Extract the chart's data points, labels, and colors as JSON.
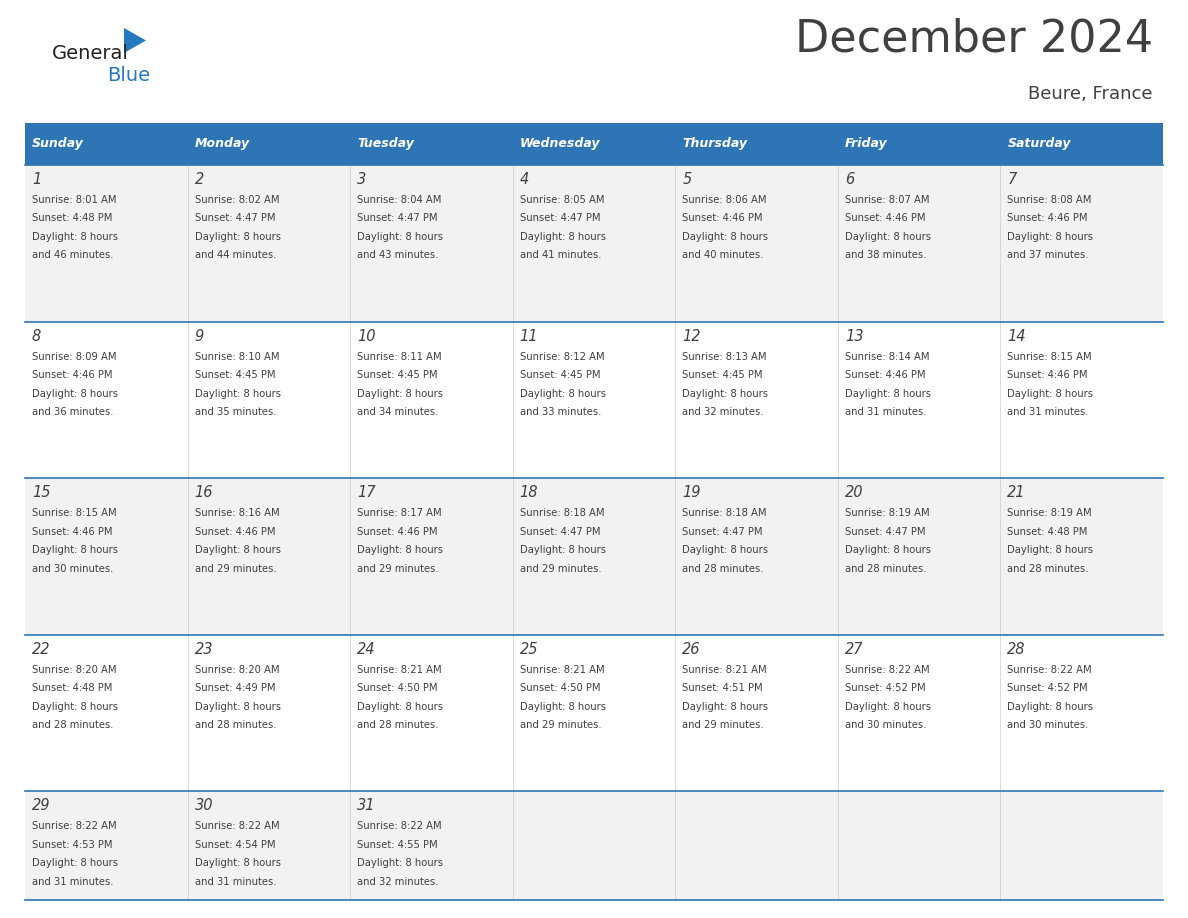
{
  "title": "December 2024",
  "subtitle": "Beure, France",
  "header_color": "#2E75B6",
  "header_text_color": "#FFFFFF",
  "days_of_week": [
    "Sunday",
    "Monday",
    "Tuesday",
    "Wednesday",
    "Thursday",
    "Friday",
    "Saturday"
  ],
  "weeks": [
    [
      {
        "day": 1,
        "sunrise": "8:01 AM",
        "sunset": "4:48 PM",
        "daylight_hours": 8,
        "daylight_minutes": 46
      },
      {
        "day": 2,
        "sunrise": "8:02 AM",
        "sunset": "4:47 PM",
        "daylight_hours": 8,
        "daylight_minutes": 44
      },
      {
        "day": 3,
        "sunrise": "8:04 AM",
        "sunset": "4:47 PM",
        "daylight_hours": 8,
        "daylight_minutes": 43
      },
      {
        "day": 4,
        "sunrise": "8:05 AM",
        "sunset": "4:47 PM",
        "daylight_hours": 8,
        "daylight_minutes": 41
      },
      {
        "day": 5,
        "sunrise": "8:06 AM",
        "sunset": "4:46 PM",
        "daylight_hours": 8,
        "daylight_minutes": 40
      },
      {
        "day": 6,
        "sunrise": "8:07 AM",
        "sunset": "4:46 PM",
        "daylight_hours": 8,
        "daylight_minutes": 38
      },
      {
        "day": 7,
        "sunrise": "8:08 AM",
        "sunset": "4:46 PM",
        "daylight_hours": 8,
        "daylight_minutes": 37
      }
    ],
    [
      {
        "day": 8,
        "sunrise": "8:09 AM",
        "sunset": "4:46 PM",
        "daylight_hours": 8,
        "daylight_minutes": 36
      },
      {
        "day": 9,
        "sunrise": "8:10 AM",
        "sunset": "4:45 PM",
        "daylight_hours": 8,
        "daylight_minutes": 35
      },
      {
        "day": 10,
        "sunrise": "8:11 AM",
        "sunset": "4:45 PM",
        "daylight_hours": 8,
        "daylight_minutes": 34
      },
      {
        "day": 11,
        "sunrise": "8:12 AM",
        "sunset": "4:45 PM",
        "daylight_hours": 8,
        "daylight_minutes": 33
      },
      {
        "day": 12,
        "sunrise": "8:13 AM",
        "sunset": "4:45 PM",
        "daylight_hours": 8,
        "daylight_minutes": 32
      },
      {
        "day": 13,
        "sunrise": "8:14 AM",
        "sunset": "4:46 PM",
        "daylight_hours": 8,
        "daylight_minutes": 31
      },
      {
        "day": 14,
        "sunrise": "8:15 AM",
        "sunset": "4:46 PM",
        "daylight_hours": 8,
        "daylight_minutes": 31
      }
    ],
    [
      {
        "day": 15,
        "sunrise": "8:15 AM",
        "sunset": "4:46 PM",
        "daylight_hours": 8,
        "daylight_minutes": 30
      },
      {
        "day": 16,
        "sunrise": "8:16 AM",
        "sunset": "4:46 PM",
        "daylight_hours": 8,
        "daylight_minutes": 29
      },
      {
        "day": 17,
        "sunrise": "8:17 AM",
        "sunset": "4:46 PM",
        "daylight_hours": 8,
        "daylight_minutes": 29
      },
      {
        "day": 18,
        "sunrise": "8:18 AM",
        "sunset": "4:47 PM",
        "daylight_hours": 8,
        "daylight_minutes": 29
      },
      {
        "day": 19,
        "sunrise": "8:18 AM",
        "sunset": "4:47 PM",
        "daylight_hours": 8,
        "daylight_minutes": 28
      },
      {
        "day": 20,
        "sunrise": "8:19 AM",
        "sunset": "4:47 PM",
        "daylight_hours": 8,
        "daylight_minutes": 28
      },
      {
        "day": 21,
        "sunrise": "8:19 AM",
        "sunset": "4:48 PM",
        "daylight_hours": 8,
        "daylight_minutes": 28
      }
    ],
    [
      {
        "day": 22,
        "sunrise": "8:20 AM",
        "sunset": "4:48 PM",
        "daylight_hours": 8,
        "daylight_minutes": 28
      },
      {
        "day": 23,
        "sunrise": "8:20 AM",
        "sunset": "4:49 PM",
        "daylight_hours": 8,
        "daylight_minutes": 28
      },
      {
        "day": 24,
        "sunrise": "8:21 AM",
        "sunset": "4:50 PM",
        "daylight_hours": 8,
        "daylight_minutes": 28
      },
      {
        "day": 25,
        "sunrise": "8:21 AM",
        "sunset": "4:50 PM",
        "daylight_hours": 8,
        "daylight_minutes": 29
      },
      {
        "day": 26,
        "sunrise": "8:21 AM",
        "sunset": "4:51 PM",
        "daylight_hours": 8,
        "daylight_minutes": 29
      },
      {
        "day": 27,
        "sunrise": "8:22 AM",
        "sunset": "4:52 PM",
        "daylight_hours": 8,
        "daylight_minutes": 30
      },
      {
        "day": 28,
        "sunrise": "8:22 AM",
        "sunset": "4:52 PM",
        "daylight_hours": 8,
        "daylight_minutes": 30
      }
    ],
    [
      {
        "day": 29,
        "sunrise": "8:22 AM",
        "sunset": "4:53 PM",
        "daylight_hours": 8,
        "daylight_minutes": 31
      },
      {
        "day": 30,
        "sunrise": "8:22 AM",
        "sunset": "4:54 PM",
        "daylight_hours": 8,
        "daylight_minutes": 31
      },
      {
        "day": 31,
        "sunrise": "8:22 AM",
        "sunset": "4:55 PM",
        "daylight_hours": 8,
        "daylight_minutes": 32
      },
      null,
      null,
      null,
      null
    ]
  ],
  "bg_color": "#FFFFFF",
  "cell_bg_light": "#F2F2F2",
  "cell_bg_white": "#FFFFFF",
  "line_color": "#2E75B6",
  "text_color": "#404040",
  "logo_general_color": "#222222",
  "logo_blue_color": "#2779BD"
}
